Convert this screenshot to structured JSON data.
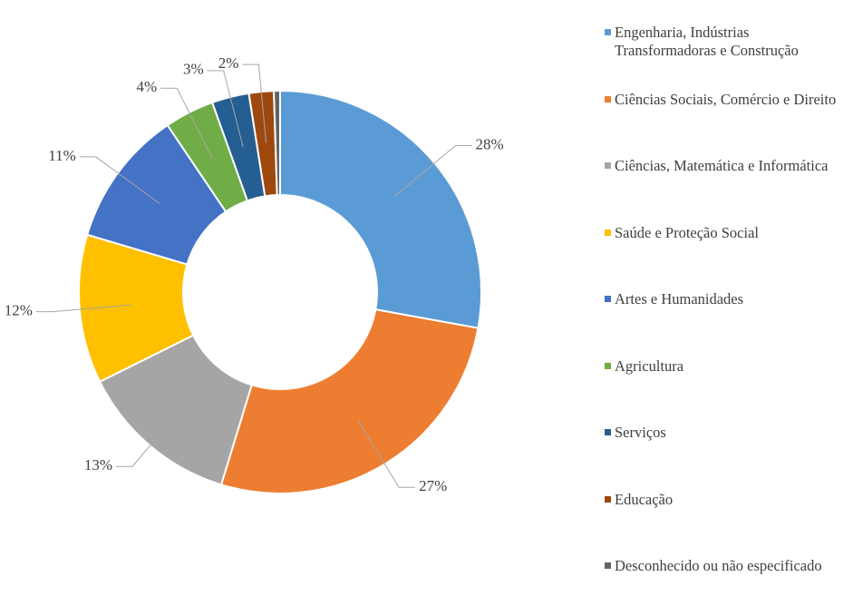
{
  "chart_data": {
    "type": "donut",
    "categories": [
      "Engenharia, Indústrias Transformadoras e Construção",
      "Ciências Sociais, Comércio e Direito",
      "Ciências, Matemática e Informática",
      "Saúde e Proteção Social",
      "Artes e Humanidades",
      "Agricultura",
      "Serviços",
      "Educação",
      "Desconhecido ou não especificado"
    ],
    "values": [
      28,
      27,
      13,
      12,
      11,
      4,
      3,
      2,
      0.5
    ],
    "value_labels": [
      "28%",
      "27%",
      "13%",
      "12%",
      "11%",
      "4%",
      "3%",
      "2%",
      null
    ],
    "colors": [
      "#5b9bd5",
      "#ed7d31",
      "#a5a5a5",
      "#ffc000",
      "#4472c4",
      "#70ad47",
      "#255e91",
      "#9e480e",
      "#636363"
    ],
    "legend": "right"
  }
}
